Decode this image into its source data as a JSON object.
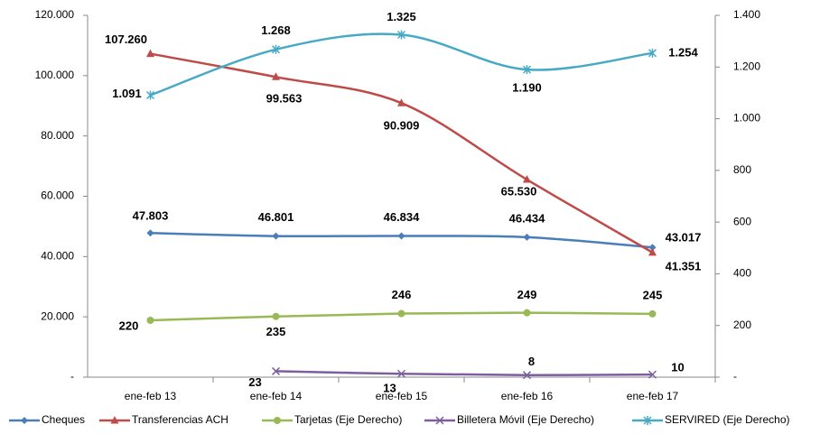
{
  "chart_data": {
    "type": "line",
    "categories": [
      "ene-feb 13",
      "ene-feb 14",
      "ene-feb 15",
      "ene-feb 16",
      "ene-feb 17"
    ],
    "ylim": [
      0,
      120000
    ],
    "yticks": [
      {
        "value": 0,
        "label": "-"
      },
      {
        "value": 20000,
        "label": "20.000"
      },
      {
        "value": 40000,
        "label": "40.000"
      },
      {
        "value": 60000,
        "label": "60.000"
      },
      {
        "value": 80000,
        "label": "80.000"
      },
      {
        "value": 100000,
        "label": "100.000"
      },
      {
        "value": 120000,
        "label": "120.000"
      }
    ],
    "y2lim": [
      0,
      1400
    ],
    "y2ticks": [
      {
        "value": 0,
        "label": "-"
      },
      200,
      400,
      600,
      800,
      {
        "value": 1000,
        "label": "1.000"
      },
      {
        "value": 1200,
        "label": "1.200"
      },
      {
        "value": 1400,
        "label": "1.400"
      }
    ],
    "series": [
      {
        "name": "Cheques",
        "color": "#4a7ebb",
        "values": [
          47803,
          46801,
          46834,
          46434,
          43017
        ],
        "value_labels": [
          "47.803",
          "46.801",
          "46.834",
          "46.434",
          "43.017"
        ]
      },
      {
        "name": "Transferencias ACH",
        "color": "#be4b48",
        "values": [
          107260,
          99563,
          90909,
          65530,
          41351
        ],
        "value_labels": [
          "107.260",
          "99.563",
          "90.909",
          "65.530",
          "41.351"
        ]
      },
      {
        "name": "Tarjetas (Eje Derecho)",
        "color": "#98b954",
        "axis": "y2",
        "values": [
          220,
          235,
          246,
          249,
          245
        ]
      },
      {
        "name": "Billetera Móvil (Eje Derecho)",
        "color": "#7d5fa0",
        "axis": "y2",
        "values": [
          null,
          23,
          13,
          8,
          10
        ]
      },
      {
        "name": "SERVIRED (Eje Derecho)",
        "color": "#46aac5",
        "axis": "y2",
        "values": [
          1091,
          1268,
          1325,
          1190,
          1254
        ],
        "value_labels": [
          "1.091",
          "1.268",
          "1.325",
          "1.190",
          "1.254"
        ]
      }
    ]
  }
}
